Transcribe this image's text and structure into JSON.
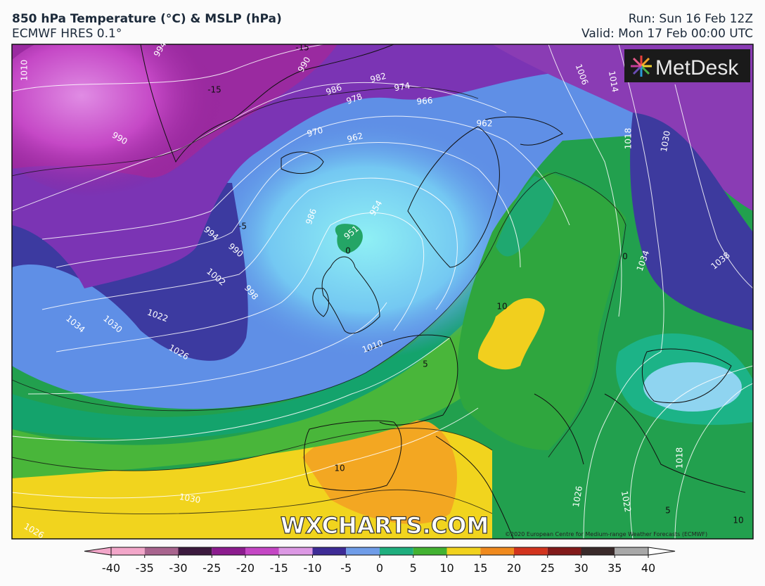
{
  "header": {
    "title": "850 hPa Temperature (°C) & MSLP (hPa)",
    "subtitle": "ECMWF HRES 0.1°",
    "run": "Run: Sun 16 Feb 12Z",
    "valid": "Valid: Mon 17 Feb 00:00 UTC"
  },
  "logo": "MetDesk",
  "watermark": "WXCHARTS.COM",
  "copyright": "©2020 European Centre for Medium-range Weather Forecasts (ECMWF)",
  "isobar_labels": [
    1010,
    994,
    990,
    994,
    990,
    1002,
    998,
    1022,
    1034,
    1030,
    1026,
    986,
    978,
    982,
    974,
    966,
    970,
    962,
    962,
    986,
    954,
    951,
    1010,
    1006,
    1014,
    1018,
    1030,
    1034,
    1038,
    1018,
    1026,
    1022,
    1030,
    1026,
    990
  ],
  "temperature_labels": [
    -15,
    -5,
    -15,
    0,
    0,
    10,
    5,
    10,
    5,
    10
  ],
  "colorbar": {
    "range": [
      -40,
      40
    ],
    "ticks": [
      -40,
      -35,
      -30,
      -25,
      -20,
      -15,
      -10,
      -5,
      0,
      5,
      10,
      15,
      20,
      25,
      30,
      35,
      40
    ],
    "colors": [
      "#f2a6c9",
      "#a8648e",
      "#3c1a3e",
      "#8c1c8e",
      "#c446c4",
      "#dc98e4",
      "#3e2c96",
      "#6f9ce8",
      "#1fae7e",
      "#43b232",
      "#f1d21e",
      "#f08a1e",
      "#d2341e",
      "#821a1a",
      "#3a2a2a",
      "#a8a8a8"
    ]
  }
}
